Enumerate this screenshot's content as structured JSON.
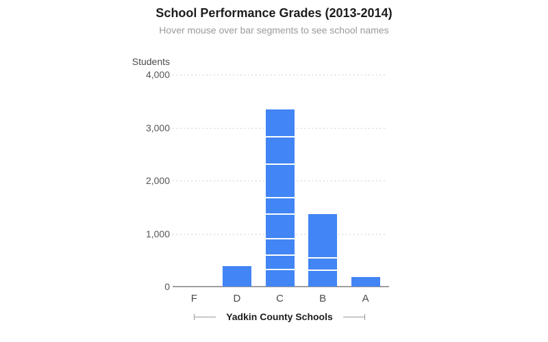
{
  "chart_data": {
    "type": "bar",
    "variant": "stacked-vertical",
    "title": "School Performance Grades (2013-2014)",
    "subtitle": "Hover mouse over bar segments to see school names",
    "ylabel": "Students",
    "xlabel": "Yadkin County Schools",
    "categories": [
      "F",
      "D",
      "C",
      "B",
      "A"
    ],
    "ylim": [
      0,
      4000
    ],
    "y_ticks": [
      {
        "value": 0,
        "label": "0"
      },
      {
        "value": 1000,
        "label": "1,000"
      },
      {
        "value": 2000,
        "label": "2,000"
      },
      {
        "value": 3000,
        "label": "3,000"
      },
      {
        "value": 4000,
        "label": "4,000"
      }
    ],
    "grid": "horizontal dotted gridlines at 1000/2000/3000/4000, solid axis line at 0",
    "legend": "none",
    "segment_order": "bottom-to-top",
    "bars": [
      {
        "category": "F",
        "segments": [],
        "total": 0
      },
      {
        "category": "D",
        "segments": [
          385
        ],
        "total": 385
      },
      {
        "category": "C",
        "segments": [
          315,
          260,
          315,
          470,
          310,
          625,
          515,
          535
        ],
        "total": 3345
      },
      {
        "category": "B",
        "segments": [
          295,
          240,
          835
        ],
        "total": 1370
      },
      {
        "category": "A",
        "segments": [
          185
        ],
        "total": 185
      }
    ]
  },
  "colors": {
    "bar": "#4285f4",
    "segment_divider": "#ffffff",
    "gridline": "#c3c3c3",
    "axis_line": "#9e9e9e",
    "title": "#1c1c1c",
    "subtitle": "#9a9a9a",
    "tick_label": "#555555",
    "category_label": "#4a4a4a",
    "x_axis_title": "#1c1c1c",
    "bracket": "#999999"
  }
}
